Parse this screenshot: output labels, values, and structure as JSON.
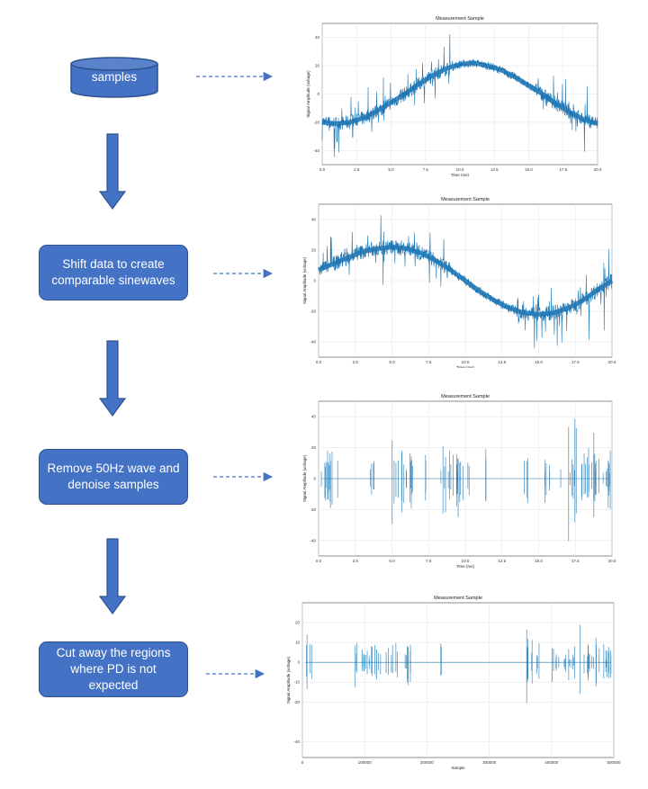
{
  "flow": {
    "source_label": "samples",
    "steps": [
      "Shift data to create\ncomparable sinewaves",
      "Remove 50Hz wave and\ndenoise samples",
      "Cut away the regions\nwhere PD is not\nexpected"
    ]
  },
  "colors": {
    "box_fill": "#4472c4",
    "box_border": "#2f528f",
    "signal": "#1f77b4",
    "grid": "#e6e6e6"
  },
  "chart_data": [
    {
      "type": "line",
      "title": "Measurement Sample",
      "xlabel": "Time (ms)",
      "ylabel": "Signal Amplitude (voltage)",
      "x_ticks": [
        "0.0",
        "2.5",
        "5.0",
        "7.5",
        "10.0",
        "12.5",
        "15.0",
        "17.5",
        "20.0"
      ],
      "y_ticks": [
        "40",
        "20",
        "0",
        "-20",
        "-40"
      ],
      "xlim": [
        0,
        20
      ],
      "ylim": [
        -50,
        50
      ],
      "series": [
        {
          "shape": "sine",
          "phase_ms": 15.0,
          "amplitude": 22,
          "offset": 0,
          "noise_regions_ms": [
            [
              0,
              9.5
            ],
            [
              15.5,
              20
            ]
          ],
          "x": [
            0,
            1,
            2,
            3,
            4,
            5,
            6,
            7,
            8,
            9,
            10,
            11,
            12,
            13,
            14,
            15,
            16,
            17,
            18,
            19,
            20
          ],
          "y": [
            -20,
            -21,
            -20,
            -17,
            -12,
            -6,
            0,
            7,
            13,
            18,
            21,
            22,
            20,
            17,
            12,
            6,
            0,
            -7,
            -13,
            -18,
            -21
          ]
        }
      ],
      "grid": true
    },
    {
      "type": "line",
      "title": "Measurement Sample",
      "xlabel": "Time (ms)",
      "ylabel": "Signal Amplitude (voltage)",
      "x_ticks": [
        "0.0",
        "2.5",
        "5.0",
        "7.5",
        "10.0",
        "12.5",
        "15.0",
        "17.5",
        "20.0"
      ],
      "y_ticks": [
        "40",
        "20",
        "0",
        "-20",
        "-40"
      ],
      "xlim": [
        0,
        20
      ],
      "ylim": [
        -50,
        50
      ],
      "series": [
        {
          "shape": "sine",
          "x": [
            0,
            1,
            2,
            3,
            4,
            5,
            6,
            7,
            8,
            9,
            10,
            11,
            12,
            13,
            14,
            15,
            16,
            17,
            18,
            19,
            20
          ],
          "y": [
            7,
            11,
            15,
            19,
            21,
            22,
            21,
            18,
            13,
            7,
            0,
            -7,
            -13,
            -18,
            -21,
            -22,
            -21,
            -18,
            -13,
            -6,
            0
          ],
          "noise_regions_ms": [
            [
              0,
              9
            ],
            [
              13.5,
              20
            ]
          ]
        }
      ],
      "grid": true
    },
    {
      "type": "line",
      "title": "Measurement Sample",
      "xlabel": "Time (ms)",
      "ylabel": "Signal Amplitude (voltage)",
      "x_ticks": [
        "0.0",
        "2.5",
        "5.0",
        "7.5",
        "10.0",
        "12.5",
        "15.0",
        "17.5",
        "20.0"
      ],
      "y_ticks": [
        "40",
        "20",
        "0",
        "-20",
        "-40"
      ],
      "xlim": [
        0,
        20
      ],
      "ylim": [
        -50,
        50
      ],
      "series": [
        {
          "baseline": 0,
          "spike_regions_ms": [
            [
              0,
              1.3
            ],
            [
              3.4,
              3.8
            ],
            [
              5.0,
              6.5
            ],
            [
              7.2,
              7.4
            ],
            [
              8.2,
              10.3
            ],
            [
              11.2,
              11.5
            ],
            [
              14.0,
              14.3
            ],
            [
              15.2,
              15.8
            ],
            [
              16.5,
              20
            ]
          ],
          "max_amplitude": 47
        }
      ],
      "grid": true
    },
    {
      "type": "line",
      "title": "Measurement Sample",
      "xlabel": "Sample",
      "ylabel": "Signal Amplitude (voltage)",
      "x_ticks": [
        "0",
        "100000",
        "200000",
        "300000",
        "400000",
        "500000"
      ],
      "y_ticks": [
        "20",
        "10",
        "0",
        "-10",
        "-20",
        "-40"
      ],
      "xlim": [
        0,
        500000
      ],
      "ylim": [
        -48,
        30
      ],
      "series": [
        {
          "baseline": 0,
          "spike_regions": [
            [
              5000,
              15000
            ],
            [
              80000,
              145000
            ],
            [
              150000,
              175000
            ],
            [
              220000,
              225000
            ],
            [
              355000,
              380000
            ],
            [
              400000,
              440000
            ],
            [
              445000,
              500000
            ]
          ],
          "max_amplitude": 25
        }
      ],
      "grid": true
    }
  ]
}
